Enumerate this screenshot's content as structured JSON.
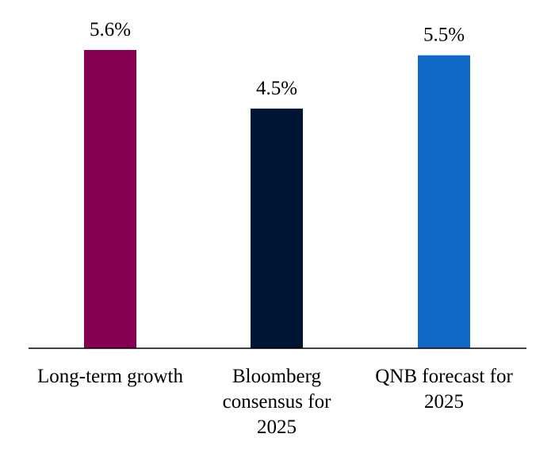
{
  "chart_data": {
    "type": "bar",
    "categories": [
      "Long-term growth",
      "Bloomberg consensus for 2025",
      "QNB forecast for 2025"
    ],
    "category_label_lines": [
      [
        "Long-term growth"
      ],
      [
        "Bloomberg",
        "consensus for",
        "2025"
      ],
      [
        "QNB forecast for",
        "2025"
      ]
    ],
    "values": [
      5.6,
      4.5,
      5.5
    ],
    "value_labels": [
      "5.6%",
      "4.5%",
      "5.5%"
    ],
    "colors": [
      "#860051",
      "#001433",
      "#1169c6"
    ],
    "ylim": [
      0,
      5.6
    ],
    "title": "",
    "xlabel": "",
    "ylabel": "",
    "grid": false,
    "legend": "none"
  }
}
